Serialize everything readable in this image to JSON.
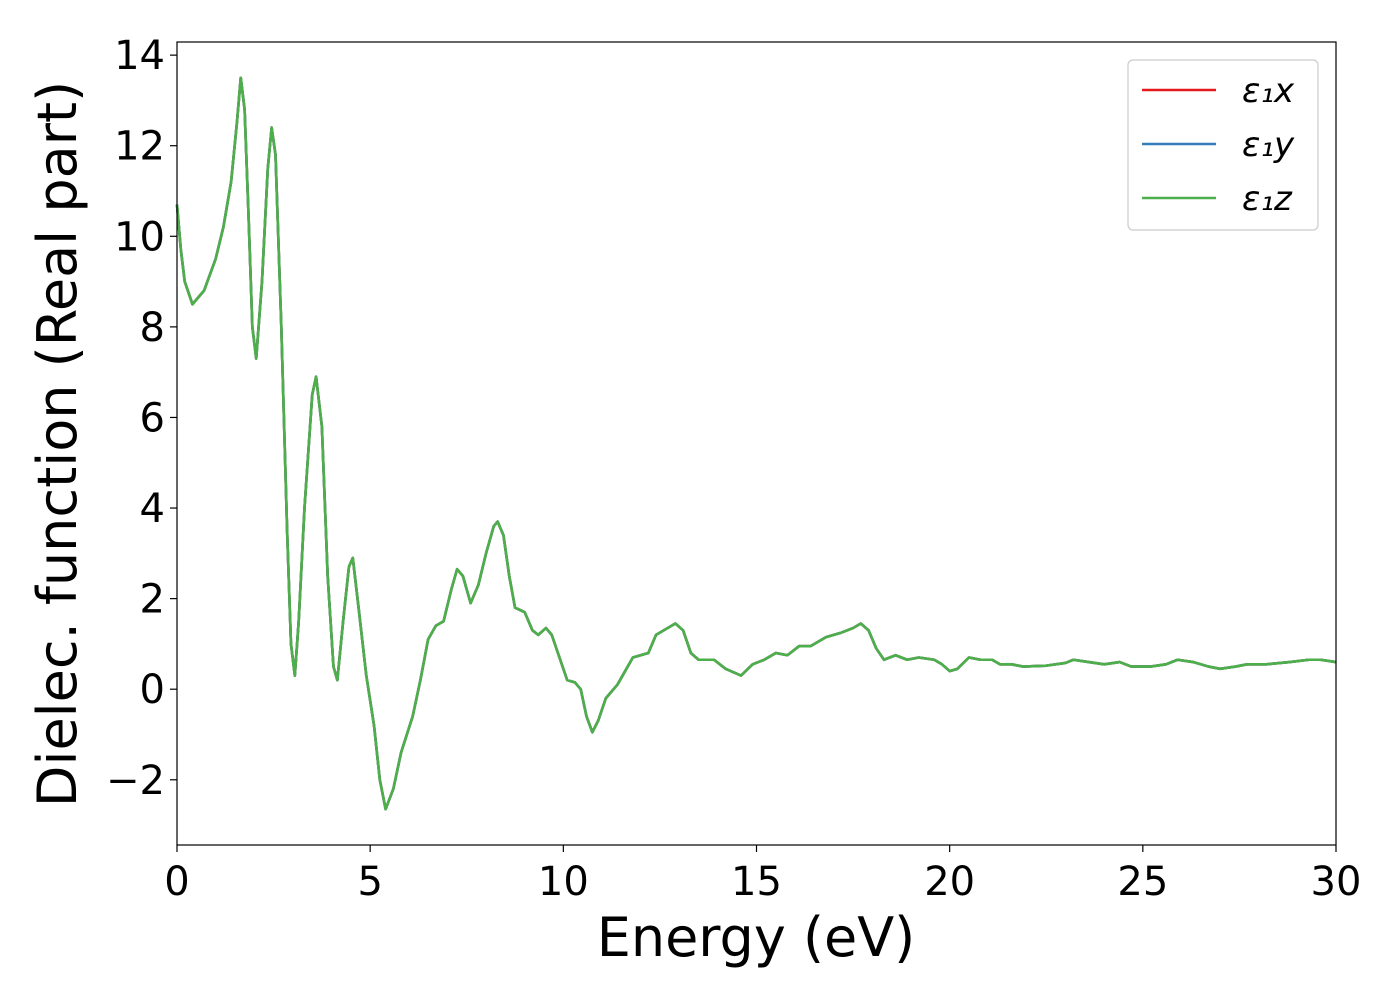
{
  "chart_data": {
    "type": "line",
    "xlabel": "Energy (eV)",
    "ylabel": "Dielec. function (Real part)",
    "x": [
      0,
      0.1,
      0.2,
      0.4,
      0.7,
      1.0,
      1.2,
      1.4,
      1.55,
      1.65,
      1.75,
      1.85,
      1.95,
      2.05,
      2.2,
      2.35,
      2.45,
      2.55,
      2.7,
      2.85,
      2.95,
      3.05,
      3.15,
      3.3,
      3.5,
      3.6,
      3.75,
      3.9,
      4.05,
      4.15,
      4.3,
      4.45,
      4.55,
      4.7,
      4.9,
      5.1,
      5.25,
      5.4,
      5.6,
      5.8,
      6.1,
      6.3,
      6.5,
      6.7,
      6.9,
      7.1,
      7.25,
      7.4,
      7.6,
      7.8,
      8.0,
      8.2,
      8.3,
      8.45,
      8.6,
      8.75,
      9.0,
      9.2,
      9.35,
      9.55,
      9.7,
      9.9,
      10.1,
      10.3,
      10.45,
      10.6,
      10.75,
      10.9,
      11.1,
      11.4,
      11.6,
      11.8,
      12.0,
      12.2,
      12.4,
      12.7,
      12.9,
      13.1,
      13.3,
      13.5,
      13.9,
      14.2,
      14.6,
      14.9,
      15.2,
      15.5,
      15.8,
      16.1,
      16.4,
      16.8,
      17.2,
      17.5,
      17.7,
      17.9,
      18.1,
      18.3,
      18.6,
      18.9,
      19.2,
      19.6,
      19.8,
      20.0,
      20.2,
      20.5,
      20.8,
      21.1,
      21.3,
      21.6,
      21.9,
      22.5,
      23.0,
      23.2,
      23.6,
      24.0,
      24.4,
      24.7,
      25.2,
      25.6,
      25.9,
      26.3,
      26.7,
      27.0,
      27.4,
      27.7,
      28.2,
      28.8,
      29.3,
      29.6,
      30.0
    ],
    "series": [
      {
        "name": "ε₁x",
        "color": "#e41a1c",
        "values": [
          10.7,
          9.7,
          9.0,
          8.5,
          8.8,
          9.5,
          10.2,
          11.2,
          12.5,
          13.5,
          12.8,
          10.5,
          8.0,
          7.3,
          9.0,
          11.5,
          12.4,
          11.8,
          8.0,
          3.5,
          1.0,
          0.3,
          1.5,
          4.0,
          6.5,
          6.9,
          5.8,
          2.5,
          0.5,
          0.2,
          1.5,
          2.7,
          2.9,
          1.8,
          0.3,
          -0.8,
          -2.0,
          -2.65,
          -2.2,
          -1.4,
          -0.6,
          0.2,
          1.1,
          1.4,
          1.5,
          2.2,
          2.65,
          2.5,
          1.9,
          2.3,
          3.0,
          3.6,
          3.7,
          3.4,
          2.5,
          1.8,
          1.7,
          1.3,
          1.2,
          1.35,
          1.2,
          0.7,
          0.2,
          0.15,
          0.0,
          -0.6,
          -0.95,
          -0.7,
          -0.2,
          0.1,
          0.4,
          0.7,
          0.75,
          0.8,
          1.2,
          1.35,
          1.45,
          1.3,
          0.8,
          0.65,
          0.65,
          0.45,
          0.3,
          0.55,
          0.65,
          0.8,
          0.75,
          0.95,
          0.95,
          1.15,
          1.25,
          1.35,
          1.45,
          1.3,
          0.9,
          0.65,
          0.75,
          0.65,
          0.7,
          0.65,
          0.55,
          0.4,
          0.45,
          0.7,
          0.65,
          0.65,
          0.55,
          0.55,
          0.5,
          0.52,
          0.58,
          0.65,
          0.6,
          0.55,
          0.6,
          0.5,
          0.5,
          0.55,
          0.65,
          0.6,
          0.5,
          0.45,
          0.5,
          0.55,
          0.55,
          0.6,
          0.65,
          0.65,
          0.6
        ]
      },
      {
        "name": "ε₁y",
        "color": "#377eb8",
        "values": [
          10.7,
          9.7,
          9.0,
          8.5,
          8.8,
          9.5,
          10.2,
          11.2,
          12.5,
          13.5,
          12.8,
          10.5,
          8.0,
          7.3,
          9.0,
          11.5,
          12.4,
          11.8,
          8.0,
          3.5,
          1.0,
          0.3,
          1.5,
          4.0,
          6.5,
          6.9,
          5.8,
          2.5,
          0.5,
          0.2,
          1.5,
          2.7,
          2.9,
          1.8,
          0.3,
          -0.8,
          -2.0,
          -2.65,
          -2.2,
          -1.4,
          -0.6,
          0.2,
          1.1,
          1.4,
          1.5,
          2.2,
          2.65,
          2.5,
          1.9,
          2.3,
          3.0,
          3.6,
          3.7,
          3.4,
          2.5,
          1.8,
          1.7,
          1.3,
          1.2,
          1.35,
          1.2,
          0.7,
          0.2,
          0.15,
          0.0,
          -0.6,
          -0.95,
          -0.7,
          -0.2,
          0.1,
          0.4,
          0.7,
          0.75,
          0.8,
          1.2,
          1.35,
          1.45,
          1.3,
          0.8,
          0.65,
          0.65,
          0.45,
          0.3,
          0.55,
          0.65,
          0.8,
          0.75,
          0.95,
          0.95,
          1.15,
          1.25,
          1.35,
          1.45,
          1.3,
          0.9,
          0.65,
          0.75,
          0.65,
          0.7,
          0.65,
          0.55,
          0.4,
          0.45,
          0.7,
          0.65,
          0.65,
          0.55,
          0.55,
          0.5,
          0.52,
          0.58,
          0.65,
          0.6,
          0.55,
          0.6,
          0.5,
          0.5,
          0.55,
          0.65,
          0.6,
          0.5,
          0.45,
          0.5,
          0.55,
          0.55,
          0.6,
          0.65,
          0.65,
          0.6
        ]
      },
      {
        "name": "ε₁z",
        "color": "#4daf4a",
        "values": [
          10.7,
          9.7,
          9.0,
          8.5,
          8.8,
          9.5,
          10.2,
          11.2,
          12.5,
          13.5,
          12.8,
          10.5,
          8.0,
          7.3,
          9.0,
          11.5,
          12.4,
          11.8,
          8.0,
          3.5,
          1.0,
          0.3,
          1.5,
          4.0,
          6.5,
          6.9,
          5.8,
          2.5,
          0.5,
          0.2,
          1.5,
          2.7,
          2.9,
          1.8,
          0.3,
          -0.8,
          -2.0,
          -2.65,
          -2.2,
          -1.4,
          -0.6,
          0.2,
          1.1,
          1.4,
          1.5,
          2.2,
          2.65,
          2.5,
          1.9,
          2.3,
          3.0,
          3.6,
          3.7,
          3.4,
          2.5,
          1.8,
          1.7,
          1.3,
          1.2,
          1.35,
          1.2,
          0.7,
          0.2,
          0.15,
          0.0,
          -0.6,
          -0.95,
          -0.7,
          -0.2,
          0.1,
          0.4,
          0.7,
          0.75,
          0.8,
          1.2,
          1.35,
          1.45,
          1.3,
          0.8,
          0.65,
          0.65,
          0.45,
          0.3,
          0.55,
          0.65,
          0.8,
          0.75,
          0.95,
          0.95,
          1.15,
          1.25,
          1.35,
          1.45,
          1.3,
          0.9,
          0.65,
          0.75,
          0.65,
          0.7,
          0.65,
          0.55,
          0.4,
          0.45,
          0.7,
          0.65,
          0.65,
          0.55,
          0.55,
          0.5,
          0.52,
          0.58,
          0.65,
          0.6,
          0.55,
          0.6,
          0.5,
          0.5,
          0.55,
          0.65,
          0.6,
          0.5,
          0.45,
          0.5,
          0.55,
          0.55,
          0.6,
          0.65,
          0.65,
          0.6
        ]
      }
    ],
    "xlim": [
      0,
      30
    ],
    "xticks": [
      0,
      5,
      10,
      15,
      20,
      25,
      30
    ],
    "ylim": [
      -3.44,
      14.29
    ],
    "yticks": [
      {
        "value": -2,
        "label": "−2"
      },
      0,
      2,
      4,
      6,
      8,
      10,
      12,
      14
    ],
    "legend": "upper right"
  }
}
